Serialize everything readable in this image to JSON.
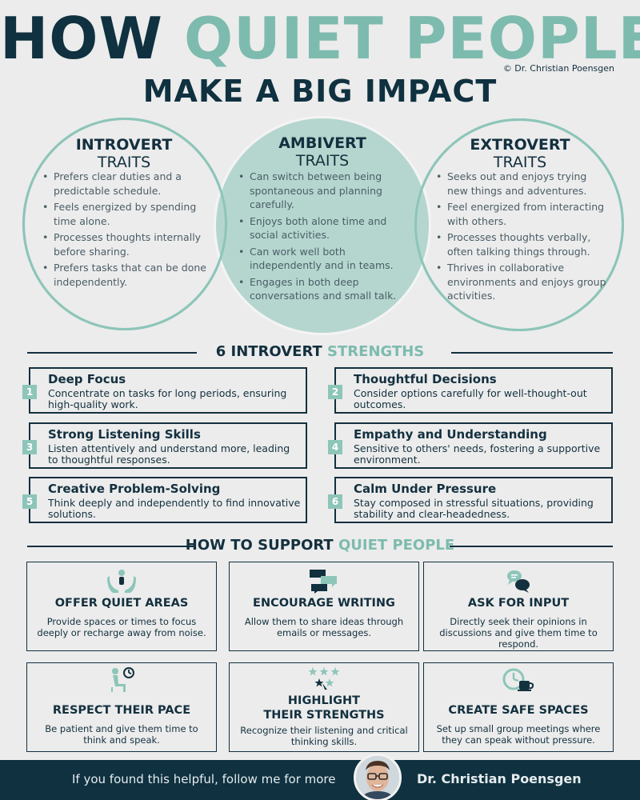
{
  "title": {
    "line1_dark": "HOW ",
    "line1_teal": "QUIET PEOPLE",
    "line2": "MAKE A BIG IMPACT",
    "copyright": "© Dr. Christian Poensgen"
  },
  "venn": {
    "introvert": {
      "heading": "INTROVERT",
      "sub": "TRAITS",
      "items": [
        "Prefers clear duties and a predictable schedule.",
        "Feels energized by spending time alone.",
        "Processes thoughts internally before sharing.",
        "Prefers tasks that can be done independently."
      ]
    },
    "ambivert": {
      "heading": "AMBIVERT",
      "sub": "TRAITS",
      "items": [
        "Can switch between being spontaneous and planning carefully.",
        "Enjoys both alone time and social activities.",
        "Can work well both independently and in teams.",
        "Engages in both deep conversations and small talk."
      ]
    },
    "extrovert": {
      "heading": "EXTROVERT",
      "sub": "TRAITS",
      "items": [
        "Seeks out and enjoys trying new things and adventures.",
        "Feel energized from interacting with others.",
        "Processes thoughts verbally, often talking things through.",
        "Thrives in collaborative environments and enjoys group activities."
      ]
    }
  },
  "strengths_header": {
    "dark": "6 INTROVERT ",
    "teal": "STRENGTHS"
  },
  "strengths": [
    {
      "num": "1",
      "title": "Deep Focus",
      "desc": "Concentrate on tasks for long periods, ensuring high-quality work."
    },
    {
      "num": "2",
      "title": "Thoughtful Decisions",
      "desc": "Consider options carefully for well-thought-out outcomes."
    },
    {
      "num": "3",
      "title": "Strong Listening Skills",
      "desc": "Listen attentively and understand more, leading to thoughtful responses."
    },
    {
      "num": "4",
      "title": "Empathy and Understanding",
      "desc": "Sensitive to others' needs, fostering a supportive environment."
    },
    {
      "num": "5",
      "title": "Creative Problem-Solving",
      "desc": "Think deeply and independently to find innovative solutions."
    },
    {
      "num": "6",
      "title": "Calm Under Pressure",
      "desc": "Stay composed in stressful situations, providing stability and clear-headedness."
    }
  ],
  "support_header": {
    "dark": "HOW TO SUPPORT ",
    "teal": "QUIET PEOPLE"
  },
  "support": [
    {
      "icon": "hands-person-icon",
      "title": "OFFER QUIET AREAS",
      "desc": "Provide spaces or times to focus deeply or recharge away from noise."
    },
    {
      "icon": "message-bubbles-icon",
      "title": "ENCOURAGE WRITING",
      "desc": "Allow them to share ideas through emails or messages."
    },
    {
      "icon": "chat-icon",
      "title": "ASK FOR INPUT",
      "desc": "Directly seek their opinions in discussions and give them time to respond."
    },
    {
      "icon": "seated-clock-icon",
      "title": "RESPECT THEIR PACE",
      "desc": "Be patient and give them time to think and speak."
    },
    {
      "icon": "stars-icon",
      "title_line1": "HIGHLIGHT",
      "title_line2": "THEIR STRENGTHS",
      "desc": "Recognize their listening and critical thinking skills."
    },
    {
      "icon": "clock-cup-icon",
      "title": "CREATE SAFE SPACES",
      "desc": "Set up small group meetings where they can speak without pressure."
    }
  ],
  "footer": {
    "text": "If you found this helpful, follow me for more",
    "name": "Dr. Christian Poensgen"
  },
  "colors": {
    "dark": "#0f3140",
    "teal": "#7dbbae",
    "teal_fill": "#b5d6cf",
    "background": "#ececec"
  }
}
